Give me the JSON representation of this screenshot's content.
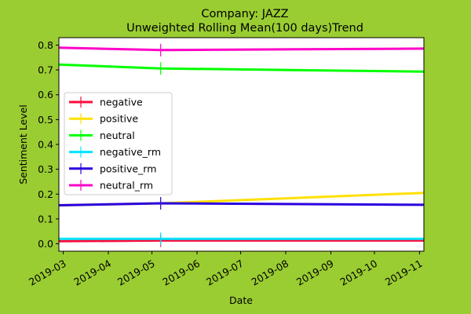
{
  "chart_data": {
    "type": "line",
    "title": "Company: JAZZ",
    "subtitle": "Unweighted Rolling Mean(100 days)Trend",
    "xlabel": "Date",
    "ylabel": "Sentiment Level",
    "xlim": [
      "2019-02-26",
      "2019-11-04"
    ],
    "ylim": [
      -0.03,
      0.83
    ],
    "xticks": [
      "2019-03",
      "2019-04",
      "2019-05",
      "2019-06",
      "2019-07",
      "2019-08",
      "2019-09",
      "2019-10",
      "2019-11"
    ],
    "yticks": [
      "0.0",
      "0.1",
      "0.2",
      "0.3",
      "0.4",
      "0.5",
      "0.6",
      "0.7",
      "0.8"
    ],
    "grid": false,
    "legend_position": "center-left",
    "series": [
      {
        "name": "negative",
        "color": "#ff0b3a",
        "x": [
          "2019-02-26",
          "2019-05-07",
          "2019-11-04"
        ],
        "y": [
          0.01,
          0.013,
          0.013
        ]
      },
      {
        "name": "positive",
        "color": "#ffe000",
        "x": [
          "2019-02-26",
          "2019-05-07",
          "2019-11-04"
        ],
        "y": [
          0.155,
          0.163,
          0.205
        ]
      },
      {
        "name": "neutral",
        "color": "#00ff00",
        "x": [
          "2019-02-26",
          "2019-05-07",
          "2019-11-04"
        ],
        "y": [
          0.722,
          0.706,
          0.693
        ]
      },
      {
        "name": "negative_rm",
        "color": "#00e5ff",
        "x": [
          "2019-02-26",
          "2019-05-07",
          "2019-11-04"
        ],
        "y": [
          0.02,
          0.02,
          0.02
        ]
      },
      {
        "name": "positive_rm",
        "color": "#2a00e0",
        "x": [
          "2019-02-26",
          "2019-05-07",
          "2019-11-04"
        ],
        "y": [
          0.155,
          0.163,
          0.157
        ]
      },
      {
        "name": "neutral_rm",
        "color": "#ff00c8",
        "x": [
          "2019-02-26",
          "2019-05-07",
          "2019-11-04"
        ],
        "y": [
          0.79,
          0.78,
          0.786
        ]
      }
    ],
    "markers_at": "2019-05-07"
  }
}
